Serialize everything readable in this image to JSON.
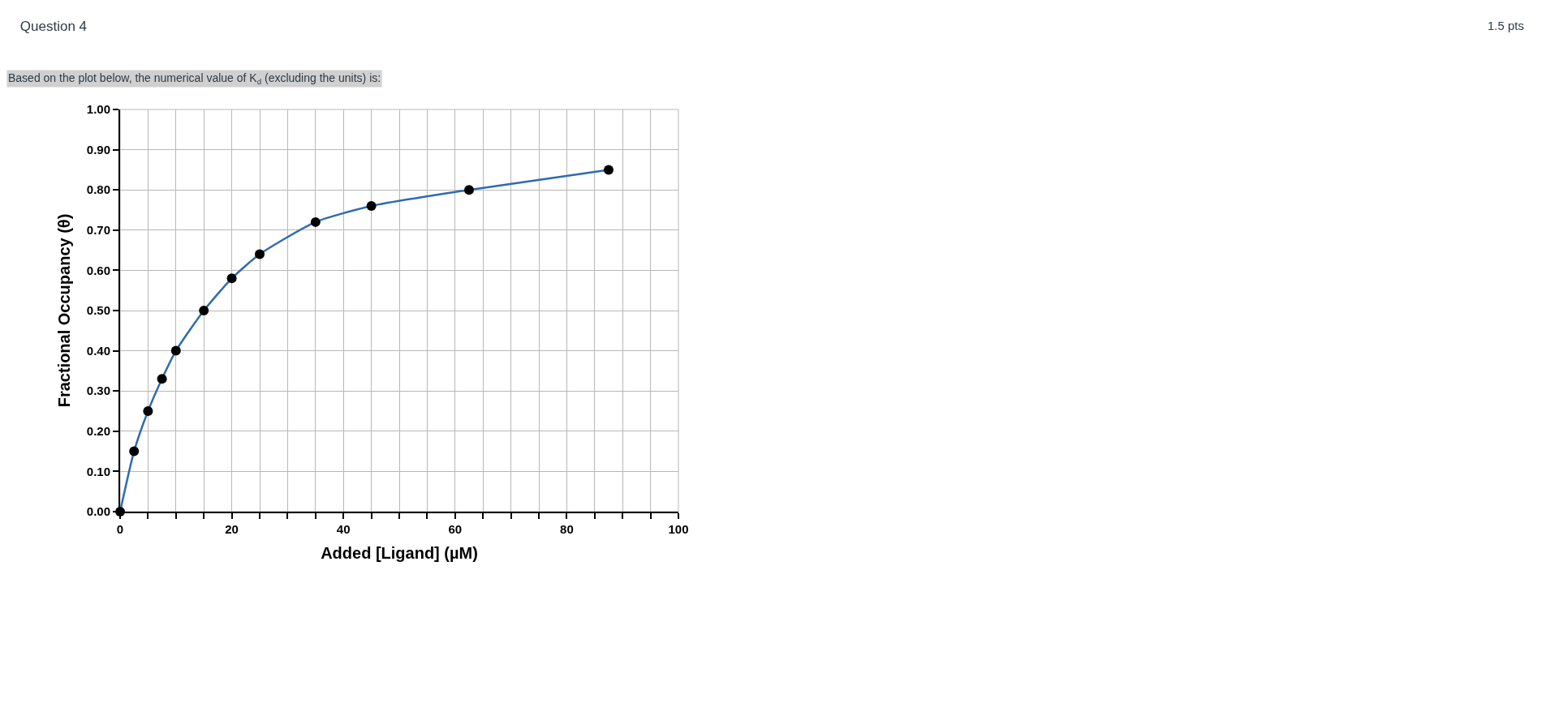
{
  "chart_data": {
    "type": "line",
    "title": "Question 4",
    "subtitle": "Based on the plot below, the numerical value of K$_{d}$ (excluding the units) is:",
    "annotations": [
      "1.5 pts"
    ],
    "xlabel": "Added [Ligand] (µM)",
    "ylabel": "Fractional Occupancy (θ)",
    "x": [
      0,
      2.5,
      5,
      7.5,
      10,
      15,
      20,
      25,
      35,
      45,
      62.5,
      87.5
    ],
    "series": [
      {
        "color": "#2e6bb0",
        "marker": "none",
        "values": [
          0,
          0.15,
          0.25,
          0.33,
          0.4,
          0.5,
          0.58,
          0.64,
          0.72,
          0.76,
          0.8,
          0.85
        ]
      },
      {
        "type": "scatter",
        "color": "#000000",
        "marker": "circle",
        "values": [
          0,
          0.15,
          0.25,
          0.33,
          0.4,
          0.5,
          0.58,
          0.64,
          0.72,
          0.76,
          0.8,
          0.85
        ]
      }
    ],
    "xlim": [
      0,
      100
    ],
    "xticks": [
      0,
      {
        "value": 5,
        "label": null
      },
      {
        "value": 10,
        "label": null
      },
      {
        "value": 15,
        "label": null
      },
      20,
      {
        "value": 25,
        "label": null
      },
      {
        "value": 30,
        "label": null
      },
      {
        "value": 35,
        "label": null
      },
      40,
      {
        "value": 45,
        "label": null
      },
      {
        "value": 50,
        "label": null
      },
      {
        "value": 55,
        "label": null
      },
      60,
      {
        "value": 65,
        "label": null
      },
      {
        "value": 70,
        "label": null
      },
      {
        "value": 75,
        "label": null
      },
      80,
      {
        "value": 85,
        "label": null
      },
      {
        "value": 90,
        "label": null
      },
      {
        "value": 95,
        "label": null
      },
      100
    ],
    "ylim": [
      0,
      1
    ],
    "yticks": [
      {
        "value": 0,
        "label": "0.00"
      },
      {
        "value": 0.1,
        "label": "0.10"
      },
      {
        "value": 0.2,
        "label": "0.20"
      },
      {
        "value": 0.3,
        "label": "0.30"
      },
      {
        "value": 0.4,
        "label": "0.40"
      },
      {
        "value": 0.5,
        "label": "0.50"
      },
      {
        "value": 0.6,
        "label": "0.60"
      },
      {
        "value": 0.7,
        "label": "0.70"
      },
      {
        "value": 0.8,
        "label": "0.80"
      },
      {
        "value": 0.9,
        "label": "0.90"
      },
      {
        "value": 1,
        "label": "1.00"
      }
    ],
    "grid": true
  }
}
